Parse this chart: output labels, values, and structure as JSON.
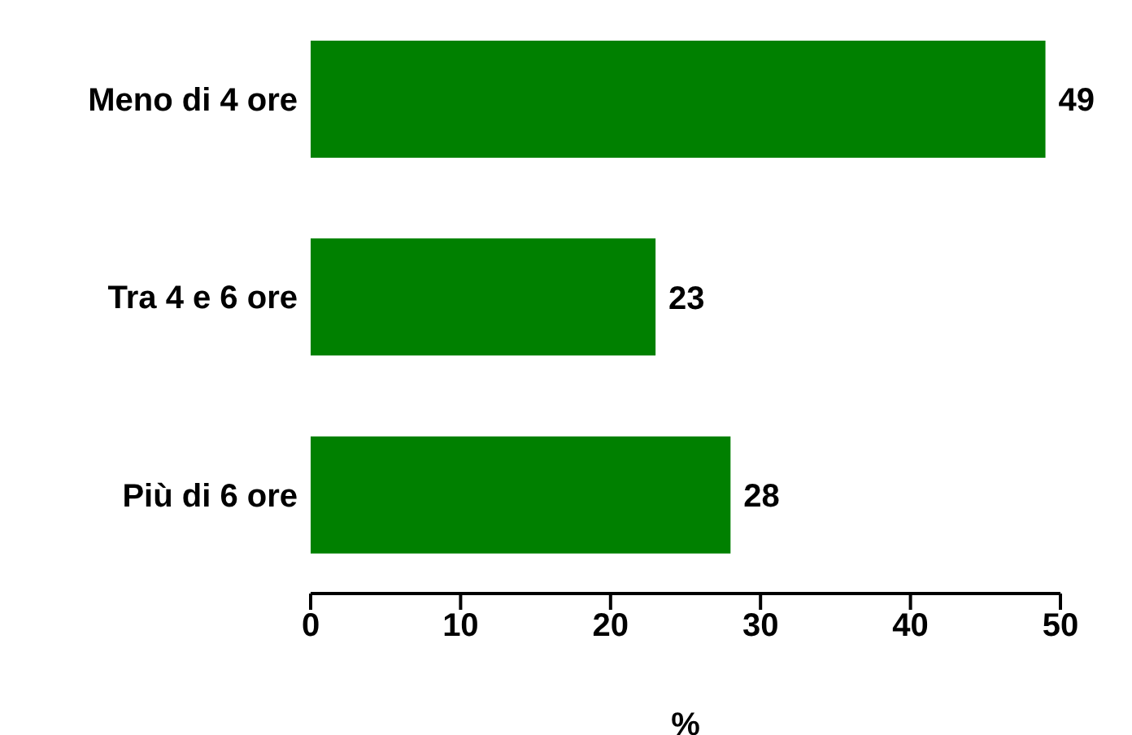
{
  "chart_data": {
    "type": "bar",
    "orientation": "horizontal",
    "categories": [
      "Meno di 4 ore",
      "Tra 4 e 6 ore",
      "Più di 6 ore"
    ],
    "values": [
      49,
      23,
      28
    ],
    "color": "#008000",
    "xlabel": "%",
    "xlim": [
      0,
      50
    ],
    "xticks": [
      0,
      10,
      20,
      30,
      40,
      50
    ],
    "data_labels": true,
    "grid": false,
    "legend": false
  }
}
